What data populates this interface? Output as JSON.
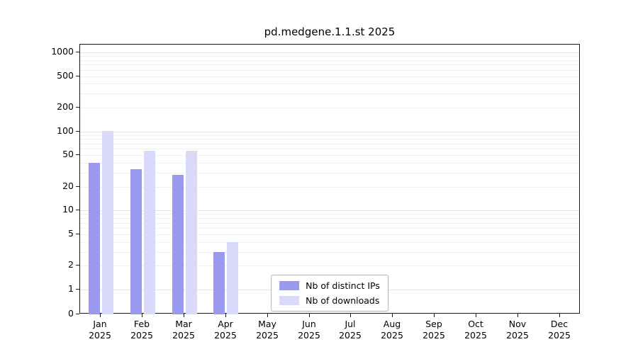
{
  "chart_data": {
    "type": "bar",
    "title": "pd.medgene.1.1.st 2025",
    "year": "2025",
    "categories": [
      "Jan",
      "Feb",
      "Mar",
      "Apr",
      "May",
      "Jun",
      "Jul",
      "Aug",
      "Sep",
      "Oct",
      "Nov",
      "Dec"
    ],
    "series": [
      {
        "name": "Nb of distinct IPs",
        "color": "#9999ee",
        "values": [
          40,
          33,
          28,
          3,
          0,
          0,
          0,
          0,
          0,
          0,
          0,
          0
        ]
      },
      {
        "name": "Nb of downloads",
        "color": "#d9d9fa",
        "values": [
          101,
          57,
          57,
          4,
          0,
          0,
          0,
          0,
          0,
          0,
          0,
          0
        ]
      }
    ],
    "yticks": [
      0,
      1,
      2,
      5,
      10,
      20,
      50,
      100,
      200,
      500,
      1000
    ],
    "xlabel": "",
    "ylabel": "",
    "yscale": "symlog",
    "ylim": [
      0,
      1000
    ],
    "grid": "horizontal-log-minor",
    "legend_position": "bottom-center-inside"
  }
}
